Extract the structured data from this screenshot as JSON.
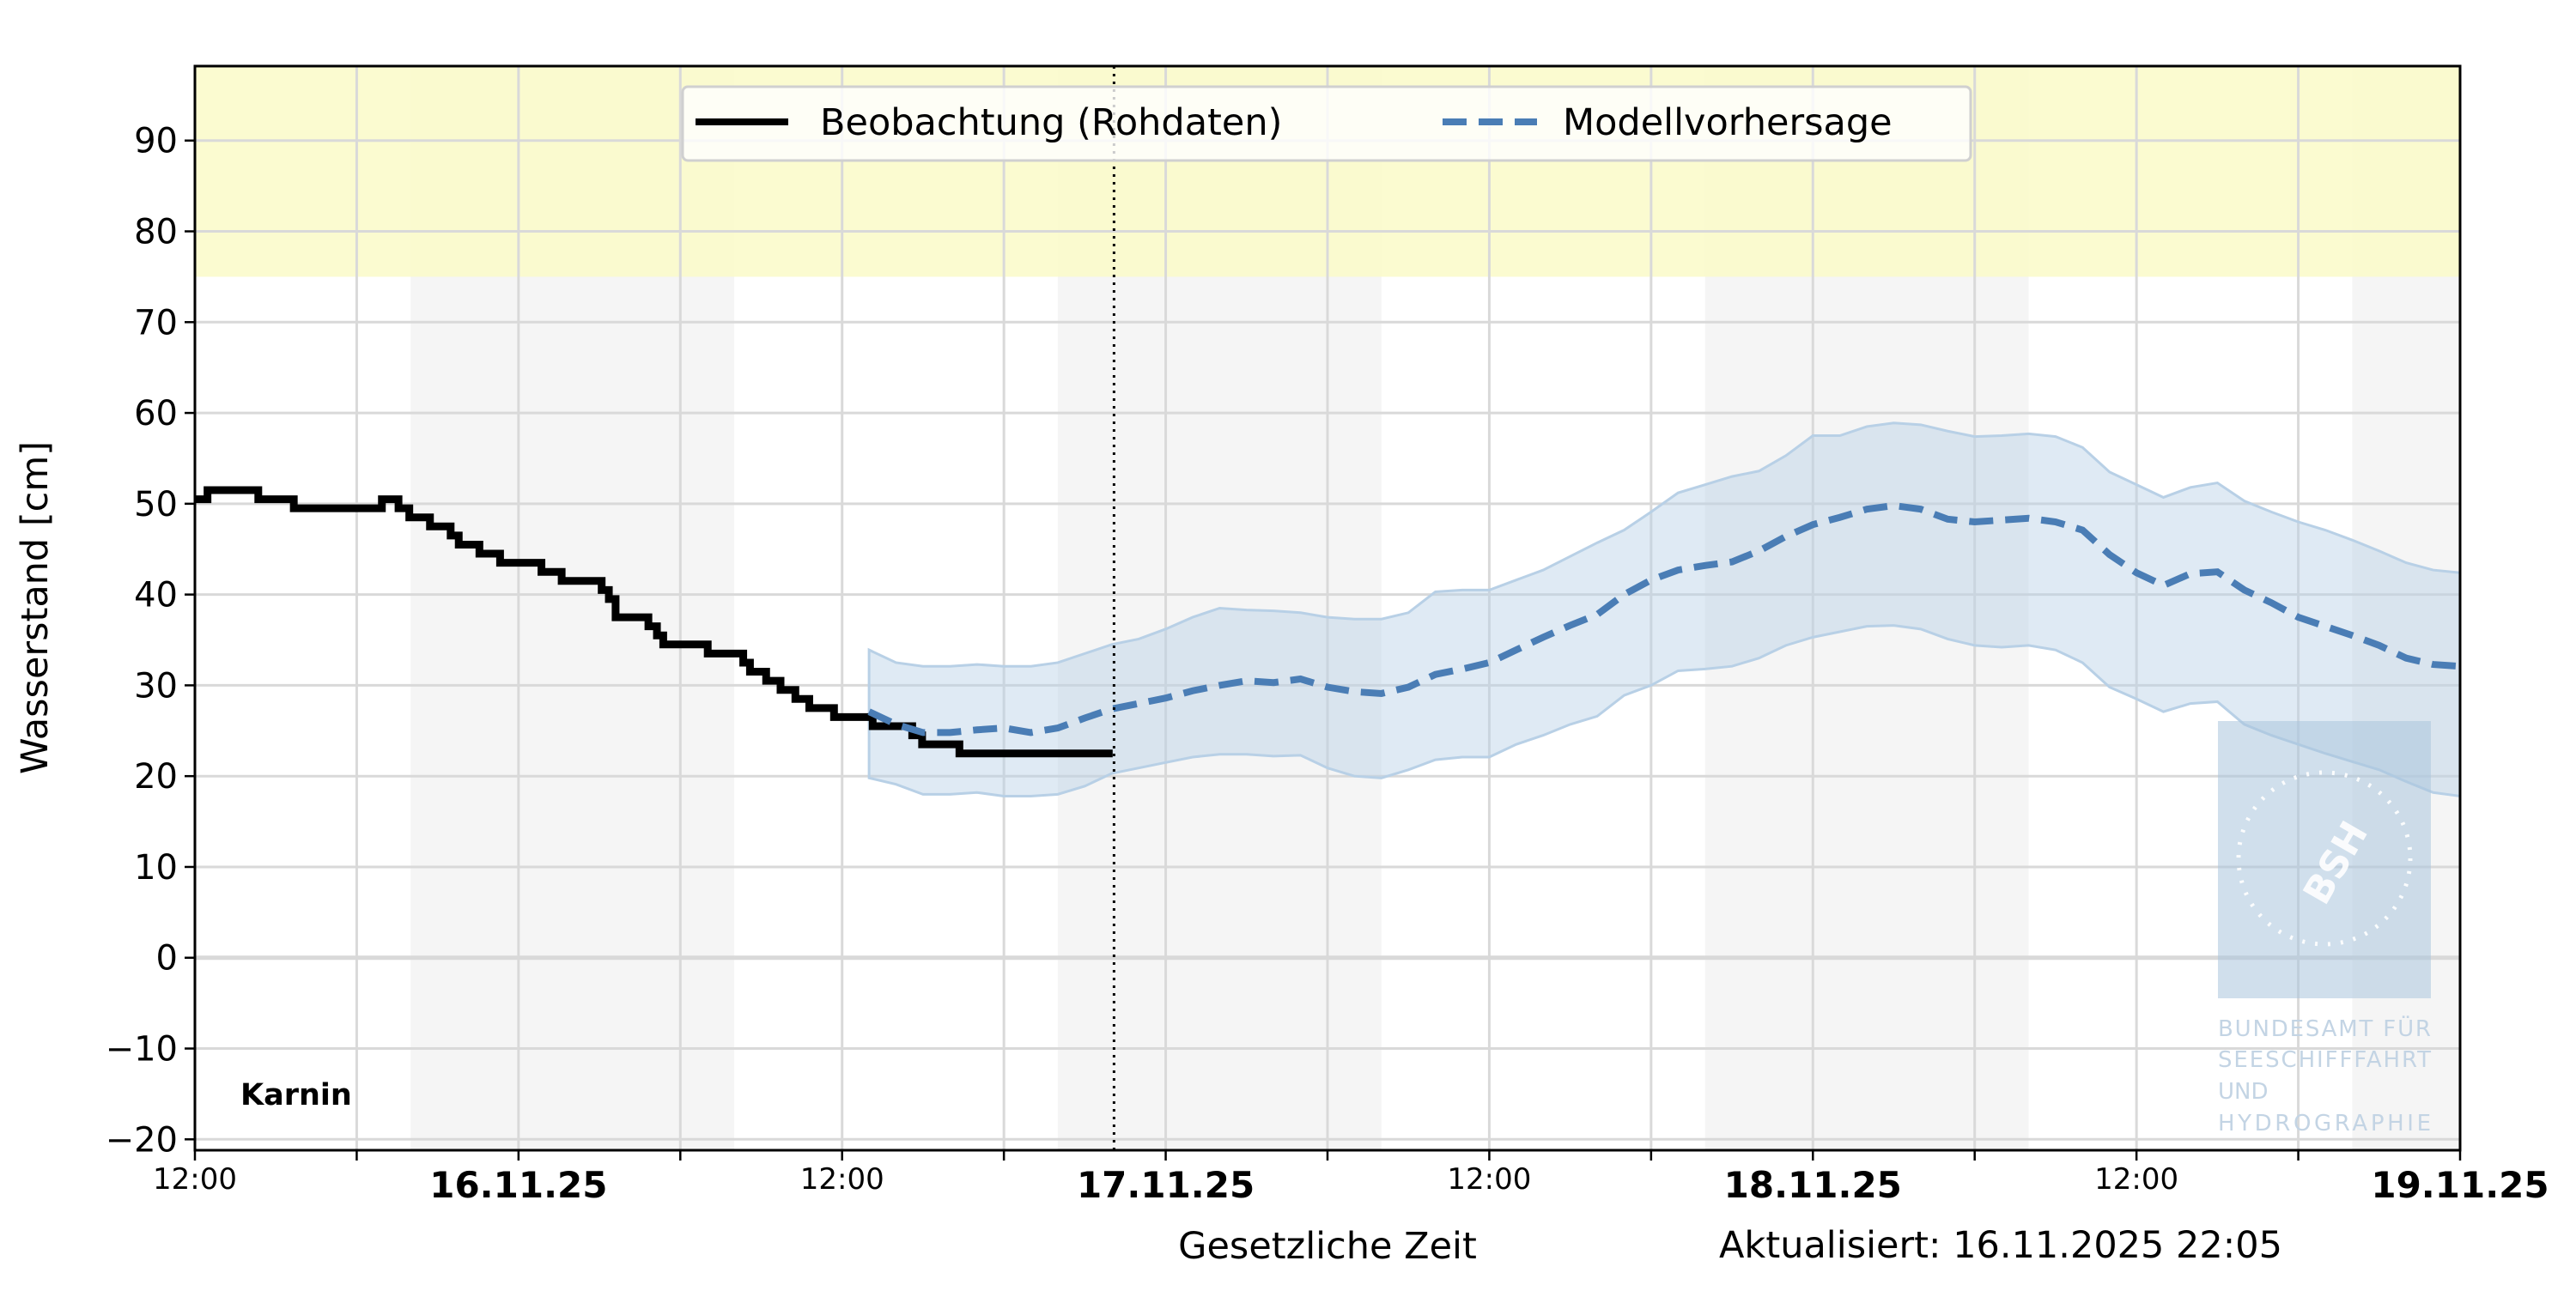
{
  "chart_data": {
    "type": "line",
    "title": "",
    "xlabel": "Gesetzliche Zeit",
    "ylabel": "Wasserstand [cm]",
    "station": "Karnin",
    "updated": "Aktualisiert: 16.11.2025 22:05",
    "now_marker": "2025-11-16T22:05",
    "xlim": [
      "2025-11-15T12:00",
      "2025-11-19T00:00"
    ],
    "ylim": [
      -21.2,
      98.2
    ],
    "grid": true,
    "legend_placement": "top-center",
    "yticks": [
      -20,
      -10,
      0,
      10,
      20,
      30,
      40,
      50,
      60,
      70,
      80,
      90
    ],
    "ytick_labels": [
      "−20",
      "−10",
      "0",
      "10",
      "20",
      "30",
      "40",
      "50",
      "60",
      "70",
      "80",
      "90"
    ],
    "xticks": [
      {
        "time": "2025-11-15T12:00",
        "label": "12:00",
        "bold": false
      },
      {
        "time": "2025-11-15T18:00",
        "label": "",
        "bold": false
      },
      {
        "time": "2025-11-16T00:00",
        "label": "16.11.25",
        "bold": true
      },
      {
        "time": "2025-11-16T06:00",
        "label": "",
        "bold": false
      },
      {
        "time": "2025-11-16T12:00",
        "label": "12:00",
        "bold": false
      },
      {
        "time": "2025-11-16T18:00",
        "label": "",
        "bold": false
      },
      {
        "time": "2025-11-17T00:00",
        "label": "17.11.25",
        "bold": true
      },
      {
        "time": "2025-11-17T06:00",
        "label": "",
        "bold": false
      },
      {
        "time": "2025-11-17T12:00",
        "label": "12:00",
        "bold": false
      },
      {
        "time": "2025-11-17T18:00",
        "label": "",
        "bold": false
      },
      {
        "time": "2025-11-18T00:00",
        "label": "18.11.25",
        "bold": true
      },
      {
        "time": "2025-11-18T06:00",
        "label": "",
        "bold": false
      },
      {
        "time": "2025-11-18T12:00",
        "label": "12:00",
        "bold": false
      },
      {
        "time": "2025-11-18T18:00",
        "label": "",
        "bold": false
      },
      {
        "time": "2025-11-19T00:00",
        "label": "19.11.25",
        "bold": true
      }
    ],
    "threshold_band": {
      "from": 75,
      "color": "#fafac8"
    },
    "shaded_periods": [
      [
        "2025-11-15T20:00",
        "2025-11-16T08:00"
      ],
      [
        "2025-11-16T20:00",
        "2025-11-17T08:00"
      ],
      [
        "2025-11-17T20:00",
        "2025-11-18T08:00"
      ],
      [
        "2025-11-18T20:00",
        "2025-11-19T00:00"
      ]
    ],
    "series": [
      {
        "name": "Beobachtung (Rohdaten)",
        "color": "#000000",
        "style": "solid-step",
        "x": [
          "2025-11-15T12:00",
          "2025-11-15T12:28",
          "2025-11-15T14:21",
          "2025-11-15T15:40",
          "2025-11-15T18:56",
          "2025-11-15T19:33",
          "2025-11-15T19:57",
          "2025-11-15T20:43",
          "2025-11-15T21:29",
          "2025-11-15T21:47",
          "2025-11-15T22:33",
          "2025-11-15T23:19",
          "2025-11-16T00:51",
          "2025-11-16T01:36",
          "2025-11-16T03:05",
          "2025-11-16T03:21",
          "2025-11-16T03:36",
          "2025-11-16T04:49",
          "2025-11-16T05:08",
          "2025-11-16T05:22",
          "2025-11-16T07:01",
          "2025-11-16T08:20",
          "2025-11-16T08:35",
          "2025-11-16T09:11",
          "2025-11-16T09:43",
          "2025-11-16T10:16",
          "2025-11-16T10:47",
          "2025-11-16T11:42",
          "2025-11-16T13:08",
          "2025-11-16T14:36",
          "2025-11-16T14:58",
          "2025-11-16T16:21",
          "2025-11-16T22:02"
        ],
        "y": [
          50.5,
          51.5,
          50.5,
          49.5,
          50.5,
          49.5,
          48.5,
          47.5,
          46.5,
          45.5,
          44.5,
          43.5,
          42.5,
          41.5,
          40.5,
          39.5,
          37.5,
          36.5,
          35.5,
          34.5,
          33.5,
          32.5,
          31.5,
          30.5,
          29.5,
          28.5,
          27.5,
          26.5,
          25.5,
          24.5,
          23.5,
          22.5,
          22.5
        ]
      },
      {
        "name": "Modellvorhersage",
        "color": "#4a7db5",
        "style": "dashed",
        "band_color": "#b8d0e6",
        "x": [
          "2025-11-16T13:00",
          "2025-11-16T14:00",
          "2025-11-16T15:00",
          "2025-11-16T16:00",
          "2025-11-16T17:00",
          "2025-11-16T18:00",
          "2025-11-16T19:00",
          "2025-11-16T20:00",
          "2025-11-16T21:00",
          "2025-11-16T22:00",
          "2025-11-16T23:00",
          "2025-11-17T00:00",
          "2025-11-17T01:00",
          "2025-11-17T02:00",
          "2025-11-17T03:00",
          "2025-11-17T04:00",
          "2025-11-17T05:00",
          "2025-11-17T06:00",
          "2025-11-17T07:00",
          "2025-11-17T08:00",
          "2025-11-17T09:00",
          "2025-11-17T10:00",
          "2025-11-17T11:00",
          "2025-11-17T12:00",
          "2025-11-17T13:00",
          "2025-11-17T14:00",
          "2025-11-17T15:00",
          "2025-11-17T16:00",
          "2025-11-17T17:00",
          "2025-11-17T18:00",
          "2025-11-17T19:00",
          "2025-11-17T20:00",
          "2025-11-17T21:00",
          "2025-11-17T22:00",
          "2025-11-17T23:00",
          "2025-11-18T00:00",
          "2025-11-18T01:00",
          "2025-11-18T02:00",
          "2025-11-18T03:00",
          "2025-11-18T04:00",
          "2025-11-18T05:00",
          "2025-11-18T06:00",
          "2025-11-18T07:00",
          "2025-11-18T08:00",
          "2025-11-18T09:00",
          "2025-11-18T10:00",
          "2025-11-18T11:00",
          "2025-11-18T12:00",
          "2025-11-18T13:00",
          "2025-11-18T14:00",
          "2025-11-18T15:00",
          "2025-11-18T16:00",
          "2025-11-18T17:00",
          "2025-11-18T18:00",
          "2025-11-18T19:00",
          "2025-11-18T20:00",
          "2025-11-18T21:00",
          "2025-11-18T22:00",
          "2025-11-18T23:00",
          "2025-11-19T00:00"
        ],
        "y": [
          27.1,
          25.7,
          24.8,
          24.8,
          25.1,
          25.3,
          24.8,
          25.3,
          26.4,
          27.4,
          28.0,
          28.6,
          29.4,
          30.0,
          30.5,
          30.3,
          30.7,
          29.8,
          29.3,
          29.1,
          29.8,
          31.2,
          31.8,
          32.5,
          33.9,
          35.3,
          36.6,
          37.8,
          40.0,
          41.6,
          42.7,
          43.2,
          43.6,
          44.8,
          46.4,
          47.7,
          48.5,
          49.4,
          49.8,
          49.4,
          48.3,
          48.0,
          48.2,
          48.4,
          48.0,
          47.1,
          44.4,
          42.4,
          41.0,
          42.3,
          42.5,
          40.5,
          39.1,
          37.5,
          36.5,
          35.5,
          34.4,
          33.0,
          32.3,
          32.1
        ],
        "upper": [
          33.9,
          32.5,
          32.1,
          32.1,
          32.3,
          32.1,
          32.1,
          32.5,
          33.5,
          34.5,
          35.1,
          36.2,
          37.5,
          38.5,
          38.3,
          38.2,
          38.0,
          37.5,
          37.3,
          37.3,
          38.0,
          40.3,
          40.5,
          40.5,
          41.6,
          42.7,
          44.2,
          45.7,
          47.1,
          49.1,
          51.2,
          52.1,
          53.0,
          53.6,
          55.3,
          57.5,
          57.5,
          58.5,
          58.9,
          58.7,
          58.0,
          57.4,
          57.5,
          57.7,
          57.4,
          56.2,
          53.5,
          52.1,
          50.7,
          51.8,
          52.3,
          50.3,
          49.1,
          48.0,
          47.1,
          46.0,
          44.8,
          43.5,
          42.7,
          42.4
        ],
        "lower": [
          19.8,
          19.1,
          18.0,
          18.0,
          18.2,
          17.8,
          17.8,
          18.0,
          18.9,
          20.3,
          20.9,
          21.5,
          22.1,
          22.4,
          22.4,
          22.2,
          22.3,
          20.9,
          20.0,
          19.8,
          20.7,
          21.8,
          22.1,
          22.1,
          23.5,
          24.5,
          25.7,
          26.6,
          28.9,
          30.0,
          31.6,
          31.8,
          32.1,
          33.0,
          34.4,
          35.3,
          35.9,
          36.5,
          36.6,
          36.2,
          35.1,
          34.4,
          34.2,
          34.4,
          33.9,
          32.5,
          29.8,
          28.5,
          27.1,
          28.0,
          28.2,
          25.7,
          24.5,
          23.5,
          22.5,
          21.6,
          20.7,
          19.4,
          18.2,
          17.8
        ]
      }
    ]
  },
  "watermark": {
    "logo_text": "BSH",
    "lines": [
      "BUNDESAMT FÜR",
      "SEESCHIFFFAHRT",
      "UND",
      "HYDROGRAPHIE"
    ]
  }
}
